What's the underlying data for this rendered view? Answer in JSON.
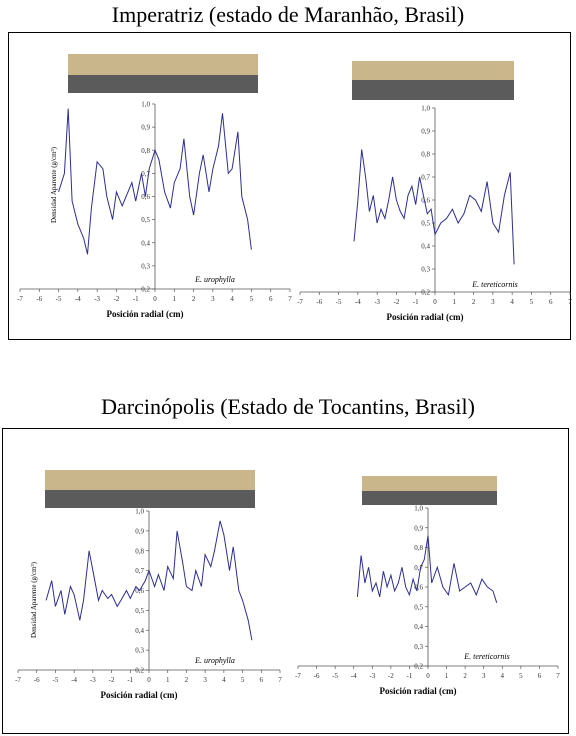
{
  "sections": [
    {
      "title": "Imperatriz (estado de Maranhão, Brasil)"
    },
    {
      "title": "Darcinópolis (Estado de Tocantins, Brasil)"
    }
  ],
  "chart_data": [
    {
      "type": "line",
      "species": "E. urophylla",
      "ylabel": "Densidad Aparente (g/cm³)",
      "xlabel": "Posición radial (cm)",
      "xlim": [
        -7,
        7
      ],
      "ylim": [
        0.2,
        1.0
      ],
      "xticks": [
        "-7",
        "-6",
        "-5",
        "-4",
        "-3",
        "-2",
        "-1",
        "0",
        "1",
        "2",
        "3",
        "4",
        "5",
        "6",
        "7"
      ],
      "yticks": [
        "0,2",
        "0,3",
        "0,4",
        "0,5",
        "0,6",
        "0,7",
        "0,8",
        "0,9",
        "1,0"
      ],
      "color": "#2b2f8f",
      "series": [
        {
          "x": [
            -5.0,
            -4.7,
            -4.5,
            -4.3,
            -4.0,
            -3.7,
            -3.5,
            -3.3,
            -3.0,
            -2.7,
            -2.5,
            -2.2,
            -2.0,
            -1.7,
            -1.5,
            -1.2,
            -1.0,
            -0.7,
            -0.5,
            -0.3,
            0.0,
            0.2,
            0.5,
            0.8,
            1.0,
            1.3,
            1.5,
            1.8,
            2.0,
            2.3,
            2.5,
            2.8,
            3.0,
            3.3,
            3.5,
            3.8,
            4.0,
            4.3,
            4.5,
            4.8,
            5.0
          ],
          "y": [
            0.62,
            0.7,
            0.98,
            0.58,
            0.48,
            0.42,
            0.35,
            0.55,
            0.75,
            0.72,
            0.6,
            0.5,
            0.62,
            0.56,
            0.6,
            0.66,
            0.58,
            0.7,
            0.6,
            0.72,
            0.8,
            0.76,
            0.62,
            0.55,
            0.66,
            0.72,
            0.85,
            0.6,
            0.52,
            0.7,
            0.78,
            0.62,
            0.72,
            0.82,
            0.96,
            0.7,
            0.72,
            0.88,
            0.6,
            0.5,
            0.37
          ]
        }
      ]
    },
    {
      "type": "line",
      "species": "E. tereticornis",
      "ylabel": "",
      "xlabel": "Posición radial (cm)",
      "xlim": [
        -7,
        7
      ],
      "ylim": [
        0.2,
        1.0
      ],
      "xticks": [
        "-7",
        "-6",
        "-5",
        "-4",
        "-3",
        "-2",
        "-1",
        "0",
        "1",
        "2",
        "3",
        "4",
        "5",
        "6",
        "7"
      ],
      "yticks": [
        "0,2",
        "0,3",
        "0,4",
        "0,5",
        "0,6",
        "0,7",
        "0,8",
        "0,9",
        "1,0"
      ],
      "color": "#2b2f8f",
      "series": [
        {
          "x": [
            -4.2,
            -4.0,
            -3.8,
            -3.6,
            -3.4,
            -3.2,
            -3.0,
            -2.8,
            -2.6,
            -2.4,
            -2.2,
            -2.0,
            -1.8,
            -1.6,
            -1.4,
            -1.2,
            -1.0,
            -0.8,
            -0.6,
            -0.4,
            -0.2,
            0.0,
            0.3,
            0.6,
            0.9,
            1.2,
            1.5,
            1.8,
            2.1,
            2.4,
            2.7,
            3.0,
            3.3,
            3.6,
            3.9,
            4.1
          ],
          "y": [
            0.42,
            0.6,
            0.82,
            0.7,
            0.55,
            0.62,
            0.5,
            0.56,
            0.52,
            0.6,
            0.7,
            0.6,
            0.55,
            0.52,
            0.62,
            0.66,
            0.58,
            0.7,
            0.62,
            0.54,
            0.56,
            0.45,
            0.5,
            0.52,
            0.56,
            0.5,
            0.54,
            0.62,
            0.6,
            0.55,
            0.68,
            0.5,
            0.46,
            0.62,
            0.72,
            0.32
          ]
        }
      ]
    },
    {
      "type": "line",
      "species": "E. urophylla",
      "ylabel": "Densidad Aparente (g/cm³)",
      "xlabel": "Posición radial (cm)",
      "xlim": [
        -7,
        7
      ],
      "ylim": [
        0.2,
        1.0
      ],
      "xticks": [
        "-7",
        "-6",
        "-5",
        "-4",
        "-3",
        "-2",
        "-1",
        "0",
        "1",
        "2",
        "3",
        "4",
        "5",
        "6",
        "7"
      ],
      "yticks": [
        "0,2",
        "0,3",
        "0,4",
        "0,5",
        "0,6",
        "0,7",
        "0,8",
        "0,9",
        "1,0"
      ],
      "color": "#2b2f8f",
      "series": [
        {
          "x": [
            -5.5,
            -5.2,
            -5.0,
            -4.7,
            -4.5,
            -4.2,
            -4.0,
            -3.7,
            -3.5,
            -3.2,
            -3.0,
            -2.7,
            -2.5,
            -2.2,
            -2.0,
            -1.7,
            -1.5,
            -1.2,
            -1.0,
            -0.7,
            -0.5,
            -0.2,
            0.0,
            0.3,
            0.5,
            0.8,
            1.0,
            1.3,
            1.5,
            1.8,
            2.0,
            2.3,
            2.5,
            2.8,
            3.0,
            3.3,
            3.5,
            3.8,
            4.0,
            4.3,
            4.5,
            4.8,
            5.0,
            5.3,
            5.5
          ],
          "y": [
            0.55,
            0.65,
            0.52,
            0.6,
            0.48,
            0.62,
            0.58,
            0.45,
            0.55,
            0.8,
            0.7,
            0.55,
            0.6,
            0.56,
            0.58,
            0.52,
            0.55,
            0.6,
            0.56,
            0.62,
            0.6,
            0.65,
            0.7,
            0.62,
            0.68,
            0.6,
            0.72,
            0.66,
            0.9,
            0.74,
            0.62,
            0.6,
            0.7,
            0.62,
            0.78,
            0.72,
            0.8,
            0.95,
            0.88,
            0.7,
            0.82,
            0.6,
            0.55,
            0.45,
            0.35
          ]
        }
      ]
    },
    {
      "type": "line",
      "species": "E. tereticornis",
      "ylabel": "",
      "xlabel": "Posición radial (cm)",
      "xlim": [
        -7,
        7
      ],
      "ylim": [
        0.2,
        1.0
      ],
      "xticks": [
        "-7",
        "-6",
        "-5",
        "-4",
        "-3",
        "-2",
        "-1",
        "0",
        "1",
        "2",
        "3",
        "4",
        "5",
        "6",
        "7"
      ],
      "yticks": [
        "0,2",
        "0,3",
        "0,4",
        "0,5",
        "0,6",
        "0,7",
        "0,8",
        "0,9",
        "1,0"
      ],
      "color": "#2b2f8f",
      "series": [
        {
          "x": [
            -3.8,
            -3.6,
            -3.4,
            -3.2,
            -3.0,
            -2.8,
            -2.6,
            -2.4,
            -2.2,
            -2.0,
            -1.8,
            -1.6,
            -1.4,
            -1.2,
            -1.0,
            -0.8,
            -0.6,
            -0.4,
            -0.2,
            0.0,
            0.2,
            0.5,
            0.8,
            1.1,
            1.4,
            1.7,
            2.0,
            2.3,
            2.6,
            2.9,
            3.2,
            3.5,
            3.7
          ],
          "y": [
            0.55,
            0.76,
            0.62,
            0.7,
            0.58,
            0.62,
            0.55,
            0.68,
            0.6,
            0.66,
            0.58,
            0.62,
            0.7,
            0.6,
            0.56,
            0.64,
            0.58,
            0.7,
            0.74,
            0.86,
            0.62,
            0.7,
            0.6,
            0.56,
            0.72,
            0.58,
            0.6,
            0.62,
            0.56,
            0.64,
            0.6,
            0.58,
            0.52
          ]
        }
      ]
    }
  ]
}
